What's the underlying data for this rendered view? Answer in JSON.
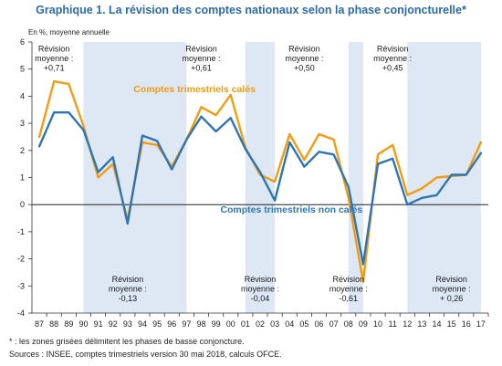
{
  "title": "Graphique 1. La révision des comptes nationaux selon la phase conjoncturelle*",
  "notes": [
    "* : les zones grisées délimitent les phases de basse conjoncture.",
    "Sources : INSEE, comptes trimestriels version 30 mai 2018, calculs OFCE."
  ],
  "colors": {
    "cale": "#f39c12",
    "non_cale": "#2e75b6",
    "shade": "#dde8f4",
    "title": "#2d6aa8"
  },
  "chart_data": {
    "type": "line",
    "ylabel": "En %, moyenne annuelle",
    "ylim": [
      -4,
      6
    ],
    "yticks": [
      "-4",
      "-3",
      "-2",
      "-1",
      "0",
      "1",
      "2",
      "3",
      "4",
      "5",
      "6"
    ],
    "categories": [
      "87",
      "88",
      "89",
      "90",
      "91",
      "92",
      "93",
      "94",
      "95",
      "96",
      "97",
      "98",
      "99",
      "00",
      "01",
      "02",
      "03",
      "04",
      "05",
      "06",
      "07",
      "08",
      "09",
      "10",
      "11",
      "12",
      "13",
      "14",
      "15",
      "16",
      "17"
    ],
    "series": [
      {
        "name": "Comptes trimestriels calés",
        "color": "#f39c12",
        "values": [
          2.5,
          4.55,
          4.45,
          2.9,
          1.0,
          1.5,
          -0.55,
          2.3,
          2.2,
          1.4,
          2.4,
          3.6,
          3.3,
          4.05,
          2.1,
          1.1,
          0.85,
          2.6,
          1.65,
          2.6,
          2.4,
          0.25,
          -2.85,
          1.85,
          2.2,
          0.35,
          0.6,
          1.0,
          1.05,
          1.1,
          2.3
        ]
      },
      {
        "name": "Comptes trimestriels non calés",
        "color": "#2e75b6",
        "values": [
          2.15,
          3.4,
          3.4,
          2.75,
          1.2,
          1.75,
          -0.7,
          2.55,
          2.35,
          1.3,
          2.4,
          3.25,
          2.7,
          3.2,
          2.05,
          1.2,
          0.15,
          2.3,
          1.4,
          1.95,
          1.85,
          0.65,
          -2.2,
          1.5,
          1.7,
          0.0,
          0.25,
          0.35,
          1.1,
          1.1,
          1.9
        ]
      }
    ],
    "series_labels": [
      {
        "text": "Comptes trimestriels calés",
        "series": 0
      },
      {
        "text": "Comptes trimestriels non calés",
        "series": 1
      }
    ],
    "shaded_periods": [
      {
        "from": "90",
        "to": "97"
      },
      {
        "from": "01",
        "to": "03"
      },
      {
        "from": "08",
        "to": "09"
      },
      {
        "from": "12",
        "to": "17"
      }
    ],
    "annotations": [
      {
        "lines": [
          "Révision",
          "moyenne :",
          "+0,71"
        ],
        "year": "88",
        "y": 5.65,
        "style": "shaded"
      },
      {
        "lines": [
          "Révision",
          "moyenne :",
          "+0,61"
        ],
        "year": "98",
        "y": 5.65,
        "style": "plain"
      },
      {
        "lines": [
          "Révision",
          "moyenne :",
          "+0,50"
        ],
        "year": "05",
        "y": 5.65,
        "style": "plain"
      },
      {
        "lines": [
          "Révision",
          "moyenne :",
          "+0,45"
        ],
        "year": "11",
        "y": 5.65,
        "style": "plain"
      },
      {
        "lines": [
          "Révision",
          "moyenne :",
          "-0,13"
        ],
        "year": "93",
        "y": -2.85,
        "style": "shaded"
      },
      {
        "lines": [
          "Révision",
          "moyenne :",
          "-0,04"
        ],
        "year": "02",
        "y": -2.85,
        "style": "shaded"
      },
      {
        "lines": [
          "Révision",
          "moyenne :",
          "-0,61"
        ],
        "year": "08",
        "y": -2.85,
        "style": "shaded"
      },
      {
        "lines": [
          "Révision",
          "moyenne :",
          "+ 0,26"
        ],
        "year": "15",
        "y": -2.85,
        "style": "shaded"
      }
    ]
  }
}
